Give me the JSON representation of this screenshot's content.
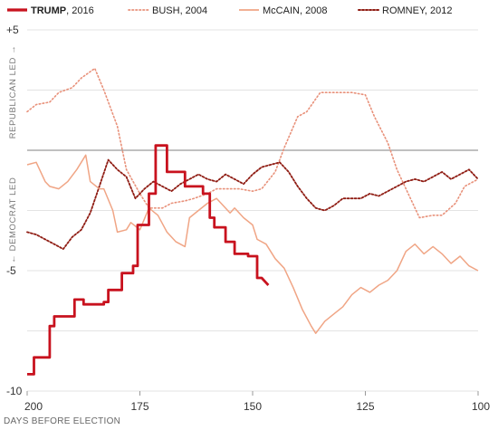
{
  "chart_data": {
    "type": "line",
    "xlabel": "DAYS BEFORE ELECTION",
    "ylabel_top": "REPUBLICAN LED →",
    "ylabel_bottom": "← DEMOCRAT LED",
    "xlim": [
      200,
      100
    ],
    "ylim": [
      -10,
      5
    ],
    "x_ticks": [
      200,
      175,
      150,
      125,
      100
    ],
    "y_ticks": [
      {
        "value": 5,
        "label": "+5"
      },
      {
        "value": -5,
        "label": "-5"
      },
      {
        "value": -10,
        "label": "-10"
      }
    ],
    "gridlines": [
      5,
      2.5,
      -2.5,
      -5,
      -7.5,
      -10
    ],
    "zero_line": 0,
    "legend_position": "top",
    "series": [
      {
        "name": "TRUMP",
        "year": ", 2016",
        "color": "#c8121e",
        "style": "thick",
        "x": [
          200,
          198.5,
          198.5,
          195,
          195,
          194,
          194,
          189.5,
          189.5,
          187.5,
          187.5,
          186,
          186,
          183,
          183,
          182,
          182,
          179,
          179,
          176.5,
          176.5,
          175.5,
          175.5,
          173,
          173,
          171.5,
          171.5,
          169,
          169,
          165,
          165,
          163,
          163,
          161,
          161,
          159.5,
          159.5,
          158.5,
          158.5,
          156,
          156,
          154,
          154,
          153,
          153,
          151,
          151,
          149,
          149,
          148,
          148,
          147,
          146.5
        ],
        "y": [
          -9.3,
          -9.3,
          -8.6,
          -8.6,
          -7.3,
          -7.3,
          -6.9,
          -6.9,
          -6.2,
          -6.2,
          -6.4,
          -6.4,
          -6.4,
          -6.4,
          -6.3,
          -6.3,
          -5.8,
          -5.8,
          -5.1,
          -5.1,
          -4.8,
          -4.8,
          -3.1,
          -3.1,
          -1.8,
          -1.8,
          0.2,
          0.2,
          -0.9,
          -0.9,
          -1.5,
          -1.5,
          -1.5,
          -1.5,
          -1.8,
          -1.8,
          -2.8,
          -2.8,
          -3.2,
          -3.2,
          -3.8,
          -3.8,
          -4.3,
          -4.3,
          -4.3,
          -4.3,
          -4.4,
          -4.4,
          -5.3,
          -5.3,
          -5.3,
          -5.5,
          -5.6
        ]
      },
      {
        "name": "BUSH",
        "year": ", 2004",
        "color": "#e8917a",
        "style": "dotted",
        "x": [
          200,
          198,
          195,
          193,
          190,
          188,
          185,
          183,
          180,
          178,
          175,
          173,
          170,
          168,
          165,
          163,
          160,
          158,
          155,
          153,
          150,
          148,
          145,
          143,
          140,
          138,
          135,
          133,
          130,
          128,
          125,
          123,
          120,
          118,
          115,
          113,
          110,
          108,
          105,
          103,
          100
        ],
        "y": [
          1.6,
          1.9,
          2.0,
          2.4,
          2.6,
          3.0,
          3.4,
          2.5,
          1.0,
          -0.8,
          -1.8,
          -2.4,
          -2.4,
          -2.2,
          -2.1,
          -2.0,
          -1.8,
          -1.6,
          -1.6,
          -1.6,
          -1.7,
          -1.6,
          -0.9,
          0.1,
          1.4,
          1.6,
          2.4,
          2.4,
          2.4,
          2.4,
          2.3,
          1.4,
          0.3,
          -0.8,
          -2.0,
          -2.8,
          -2.7,
          -2.7,
          -2.2,
          -1.5,
          -1.2
        ]
      },
      {
        "name": "McCAIN",
        "year": ", 2008",
        "color": "#f0a585",
        "style": "solid",
        "x": [
          200,
          198,
          196,
          195,
          193,
          191,
          189,
          187,
          186,
          184,
          183,
          181,
          180,
          178,
          177,
          175,
          173,
          171,
          169,
          167,
          165,
          164,
          162,
          160,
          158,
          157,
          155,
          154,
          152,
          150,
          149,
          147,
          145,
          143,
          141,
          139,
          137,
          136,
          134,
          132,
          130,
          128,
          126,
          124,
          122,
          120,
          118,
          116,
          114,
          112,
          110,
          108,
          106,
          104,
          102,
          100
        ],
        "y": [
          -0.6,
          -0.5,
          -1.3,
          -1.5,
          -1.6,
          -1.3,
          -0.8,
          -0.2,
          -1.3,
          -1.6,
          -1.6,
          -2.5,
          -3.4,
          -3.3,
          -3.0,
          -3.3,
          -2.4,
          -2.7,
          -3.4,
          -3.8,
          -4.0,
          -2.8,
          -2.5,
          -2.2,
          -2.0,
          -2.2,
          -2.6,
          -2.4,
          -2.8,
          -3.1,
          -3.7,
          -3.9,
          -4.5,
          -4.9,
          -5.7,
          -6.6,
          -7.3,
          -7.6,
          -7.1,
          -6.8,
          -6.5,
          -6.0,
          -5.7,
          -5.9,
          -5.6,
          -5.4,
          -5.0,
          -4.2,
          -3.9,
          -4.3,
          -4.0,
          -4.3,
          -4.7,
          -4.4,
          -4.8,
          -5.0
        ]
      },
      {
        "name": "ROMNEY",
        "year": ", 2012",
        "color": "#8f1c13",
        "style": "dashed",
        "x": [
          200,
          198,
          196,
          194,
          192,
          190,
          188,
          186,
          184,
          182,
          180,
          178,
          176,
          174,
          172,
          170,
          168,
          166,
          164,
          162,
          160,
          158,
          156,
          154,
          152,
          150,
          148,
          146,
          144,
          142,
          140,
          138,
          136,
          134,
          132,
          130,
          128,
          126,
          124,
          122,
          120,
          118,
          116,
          114,
          112,
          110,
          108,
          106,
          104,
          102,
          100
        ],
        "y": [
          -3.4,
          -3.5,
          -3.7,
          -3.9,
          -4.1,
          -3.6,
          -3.3,
          -2.6,
          -1.5,
          -0.4,
          -0.8,
          -1.1,
          -2.0,
          -1.6,
          -1.3,
          -1.5,
          -1.7,
          -1.4,
          -1.2,
          -1.0,
          -1.2,
          -1.3,
          -1.0,
          -1.2,
          -1.4,
          -1.0,
          -0.7,
          -0.6,
          -0.5,
          -0.9,
          -1.5,
          -2.0,
          -2.4,
          -2.5,
          -2.3,
          -2.0,
          -2.0,
          -2.0,
          -1.8,
          -1.9,
          -1.7,
          -1.5,
          -1.3,
          -1.2,
          -1.3,
          -1.1,
          -0.9,
          -1.2,
          -1.0,
          -0.8,
          -1.2
        ]
      }
    ]
  }
}
